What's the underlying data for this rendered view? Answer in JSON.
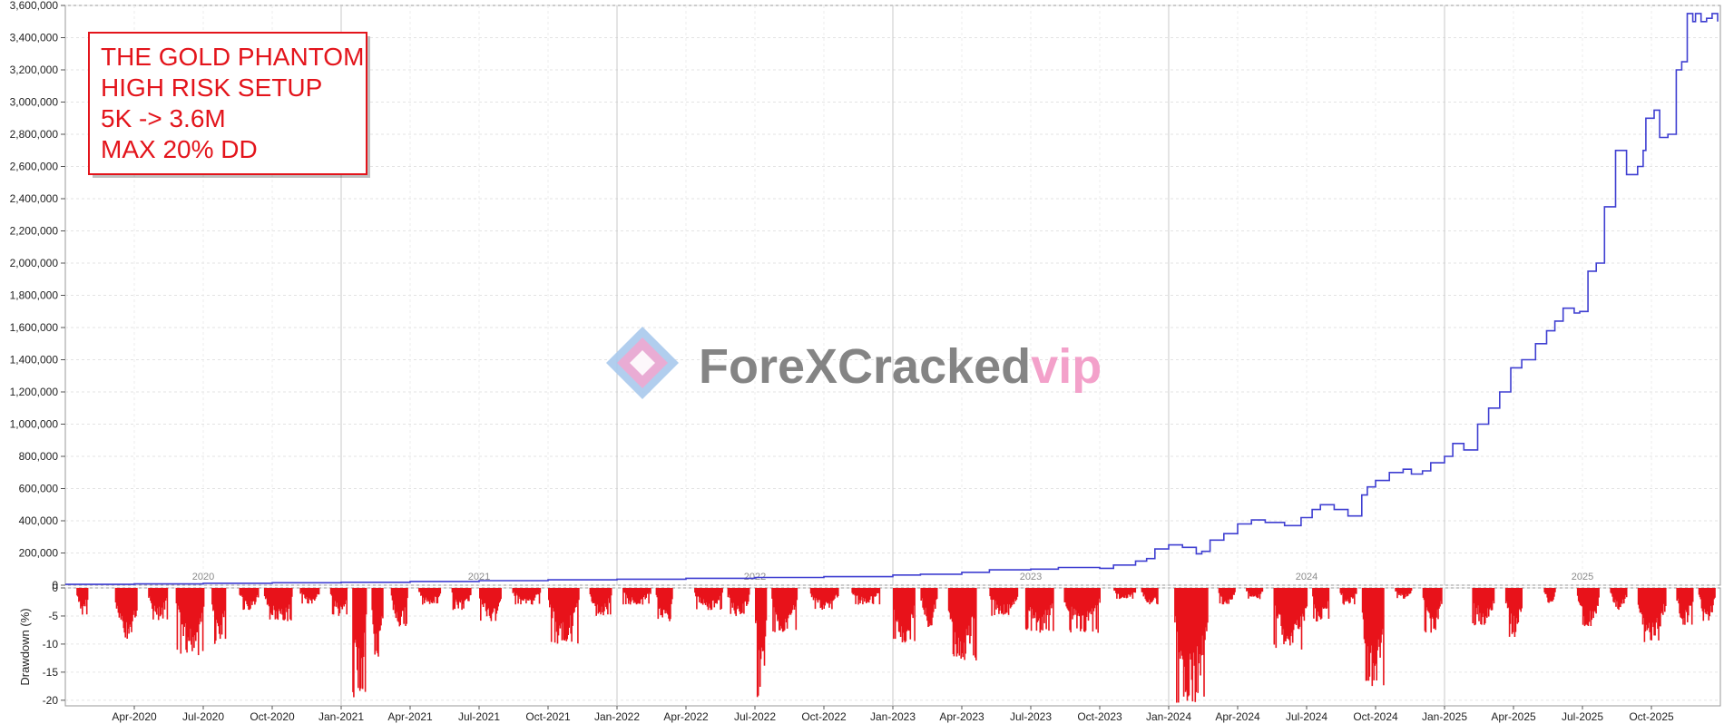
{
  "chart_data": [
    {
      "type": "line",
      "title": "",
      "xlabel": "",
      "ylabel": "",
      "ylim": [
        0,
        3600000
      ],
      "yticks": [
        "0",
        "200,000",
        "400,000",
        "600,000",
        "800,000",
        "1,000,000",
        "1,200,000",
        "1,400,000",
        "1,600,000",
        "1,800,000",
        "2,000,000",
        "2,200,000",
        "2,400,000",
        "2,600,000",
        "2,800,000",
        "3,000,000",
        "3,200,000",
        "3,400,000",
        "3,600,000"
      ],
      "ytick_values": [
        0,
        200000,
        400000,
        600000,
        800000,
        1000000,
        1200000,
        1400000,
        1600000,
        1800000,
        2000000,
        2200000,
        2400000,
        2600000,
        2800000,
        3000000,
        3200000,
        3400000,
        3600000
      ],
      "year_labels": [
        "2020",
        "2021",
        "2022",
        "2023",
        "2024",
        "2025"
      ],
      "year_label_x": [
        2020.5,
        2021.5,
        2022.5,
        2023.5,
        2024.5,
        2025.5
      ],
      "year_gridlines": [
        2021.0,
        2022.0,
        2023.0,
        2024.0,
        2025.0
      ],
      "xlim": [
        2020.0,
        2026.0
      ],
      "grid": true,
      "annotation": [
        "THE GOLD PHANTOM",
        "HIGH RISK SETUP",
        "5K -> 3.6M",
        "MAX 20% DD"
      ],
      "series": [
        {
          "color": "#3f3fd1",
          "x": [
            2020.0,
            2020.25,
            2020.5,
            2020.75,
            2021.0,
            2021.25,
            2021.5,
            2021.75,
            2022.0,
            2022.25,
            2022.5,
            2022.75,
            2023.0,
            2023.1,
            2023.25,
            2023.35,
            2023.5,
            2023.6,
            2023.75,
            2023.8,
            2023.88,
            2023.92,
            2023.95,
            2024.0,
            2024.05,
            2024.1,
            2024.12,
            2024.15,
            2024.2,
            2024.25,
            2024.3,
            2024.35,
            2024.42,
            2024.48,
            2024.52,
            2024.55,
            2024.6,
            2024.65,
            2024.7,
            2024.72,
            2024.75,
            2024.8,
            2024.85,
            2024.88,
            2024.92,
            2024.95,
            2025.0,
            2025.03,
            2025.07,
            2025.12,
            2025.16,
            2025.2,
            2025.24,
            2025.28,
            2025.33,
            2025.37,
            2025.4,
            2025.43,
            2025.47,
            2025.49,
            2025.52,
            2025.55,
            2025.58,
            2025.62,
            2025.66,
            2025.7,
            2025.72,
            2025.73,
            2025.76,
            2025.78,
            2025.81,
            2025.84,
            2025.86,
            2025.88,
            2025.9,
            2025.91,
            2025.93,
            2025.95,
            2025.97,
            2025.99
          ],
          "y": [
            5000,
            8000,
            12000,
            15000,
            18000,
            23000,
            28000,
            33000,
            37000,
            43000,
            48000,
            53000,
            63000,
            68000,
            80000,
            95000,
            100000,
            110000,
            105000,
            125000,
            150000,
            165000,
            225000,
            250000,
            235000,
            195000,
            210000,
            280000,
            320000,
            380000,
            405000,
            390000,
            370000,
            420000,
            470000,
            500000,
            470000,
            430000,
            560000,
            610000,
            650000,
            700000,
            720000,
            690000,
            710000,
            760000,
            800000,
            880000,
            840000,
            1000000,
            1100000,
            1200000,
            1350000,
            1400000,
            1500000,
            1580000,
            1640000,
            1720000,
            1690000,
            1700000,
            1950000,
            2000000,
            2350000,
            2700000,
            2550000,
            2600000,
            2700000,
            2900000,
            2950000,
            2780000,
            2800000,
            3200000,
            3250000,
            3550000,
            3500000,
            3550000,
            3500000,
            3520000,
            3550000,
            3500000
          ]
        }
      ]
    },
    {
      "type": "bar",
      "title": "",
      "xlabel": "",
      "ylabel": "Drawdown (%)",
      "ylim": [
        -21,
        0
      ],
      "yticks": [
        "0",
        "-5",
        "-10",
        "-15",
        "-20"
      ],
      "ytick_values": [
        0,
        -5,
        -10,
        -15,
        -20
      ],
      "xticks": [
        "Apr-2020",
        "Jul-2020",
        "Oct-2020",
        "Jan-2021",
        "Apr-2021",
        "Jul-2021",
        "Oct-2021",
        "Jan-2022",
        "Apr-2022",
        "Jul-2022",
        "Oct-2022",
        "Jan-2023",
        "Apr-2023",
        "Jul-2023",
        "Oct-2023",
        "Jan-2024",
        "Apr-2024",
        "Jul-2024",
        "Oct-2024",
        "Jan-2025",
        "Apr-2025",
        "Jul-2025",
        "Oct-2025"
      ],
      "xtick_values": [
        2020.25,
        2020.5,
        2020.75,
        2021.0,
        2021.25,
        2021.5,
        2021.75,
        2022.0,
        2022.25,
        2022.5,
        2022.75,
        2023.0,
        2023.25,
        2023.5,
        2023.75,
        2024.0,
        2024.25,
        2024.5,
        2024.75,
        2025.0,
        2025.25,
        2025.5,
        2025.75
      ],
      "xlim": [
        2020.0,
        2026.0
      ],
      "grid": true,
      "bar_color": "#e8121a",
      "episodes": [
        {
          "start": 2020.04,
          "end": 2020.08,
          "depth": -5
        },
        {
          "start": 2020.18,
          "end": 2020.26,
          "depth": -10
        },
        {
          "start": 2020.3,
          "end": 2020.37,
          "depth": -6
        },
        {
          "start": 2020.4,
          "end": 2020.5,
          "depth": -12
        },
        {
          "start": 2020.53,
          "end": 2020.58,
          "depth": -10
        },
        {
          "start": 2020.63,
          "end": 2020.7,
          "depth": -4
        },
        {
          "start": 2020.72,
          "end": 2020.82,
          "depth": -6
        },
        {
          "start": 2020.85,
          "end": 2020.92,
          "depth": -3
        },
        {
          "start": 2020.96,
          "end": 2021.02,
          "depth": -5
        },
        {
          "start": 2021.04,
          "end": 2021.09,
          "depth": -19.5
        },
        {
          "start": 2021.11,
          "end": 2021.15,
          "depth": -13
        },
        {
          "start": 2021.18,
          "end": 2021.24,
          "depth": -7
        },
        {
          "start": 2021.28,
          "end": 2021.36,
          "depth": -3
        },
        {
          "start": 2021.4,
          "end": 2021.47,
          "depth": -4
        },
        {
          "start": 2021.5,
          "end": 2021.58,
          "depth": -6
        },
        {
          "start": 2021.62,
          "end": 2021.72,
          "depth": -3
        },
        {
          "start": 2021.75,
          "end": 2021.86,
          "depth": -10
        },
        {
          "start": 2021.9,
          "end": 2021.98,
          "depth": -5
        },
        {
          "start": 2022.02,
          "end": 2022.12,
          "depth": -3
        },
        {
          "start": 2022.14,
          "end": 2022.2,
          "depth": -6
        },
        {
          "start": 2022.28,
          "end": 2022.38,
          "depth": -4
        },
        {
          "start": 2022.4,
          "end": 2022.48,
          "depth": -5
        },
        {
          "start": 2022.5,
          "end": 2022.54,
          "depth": -19.5
        },
        {
          "start": 2022.56,
          "end": 2022.65,
          "depth": -8
        },
        {
          "start": 2022.7,
          "end": 2022.8,
          "depth": -4
        },
        {
          "start": 2022.85,
          "end": 2022.95,
          "depth": -3
        },
        {
          "start": 2023.0,
          "end": 2023.08,
          "depth": -10
        },
        {
          "start": 2023.1,
          "end": 2023.16,
          "depth": -7
        },
        {
          "start": 2023.2,
          "end": 2023.3,
          "depth": -13
        },
        {
          "start": 2023.35,
          "end": 2023.45,
          "depth": -5
        },
        {
          "start": 2023.48,
          "end": 2023.58,
          "depth": -8
        },
        {
          "start": 2023.62,
          "end": 2023.75,
          "depth": -8
        },
        {
          "start": 2023.8,
          "end": 2023.88,
          "depth": -2
        },
        {
          "start": 2023.9,
          "end": 2023.96,
          "depth": -3
        },
        {
          "start": 2024.02,
          "end": 2024.14,
          "depth": -20.5
        },
        {
          "start": 2024.18,
          "end": 2024.24,
          "depth": -3
        },
        {
          "start": 2024.28,
          "end": 2024.34,
          "depth": -2
        },
        {
          "start": 2024.38,
          "end": 2024.5,
          "depth": -11
        },
        {
          "start": 2024.52,
          "end": 2024.58,
          "depth": -6
        },
        {
          "start": 2024.62,
          "end": 2024.68,
          "depth": -3
        },
        {
          "start": 2024.7,
          "end": 2024.78,
          "depth": -18
        },
        {
          "start": 2024.82,
          "end": 2024.88,
          "depth": -2
        },
        {
          "start": 2024.92,
          "end": 2024.99,
          "depth": -8
        },
        {
          "start": 2025.1,
          "end": 2025.18,
          "depth": -7
        },
        {
          "start": 2025.22,
          "end": 2025.28,
          "depth": -9
        },
        {
          "start": 2025.36,
          "end": 2025.4,
          "depth": -3
        },
        {
          "start": 2025.48,
          "end": 2025.56,
          "depth": -7
        },
        {
          "start": 2025.6,
          "end": 2025.66,
          "depth": -4
        },
        {
          "start": 2025.7,
          "end": 2025.8,
          "depth": -10
        },
        {
          "start": 2025.84,
          "end": 2025.9,
          "depth": -7
        },
        {
          "start": 2025.92,
          "end": 2025.98,
          "depth": -6
        }
      ]
    }
  ],
  "watermark": {
    "text_main": "ForeXCracked",
    "text_accent": "vip",
    "icon": "forexcracked-logo-icon"
  }
}
